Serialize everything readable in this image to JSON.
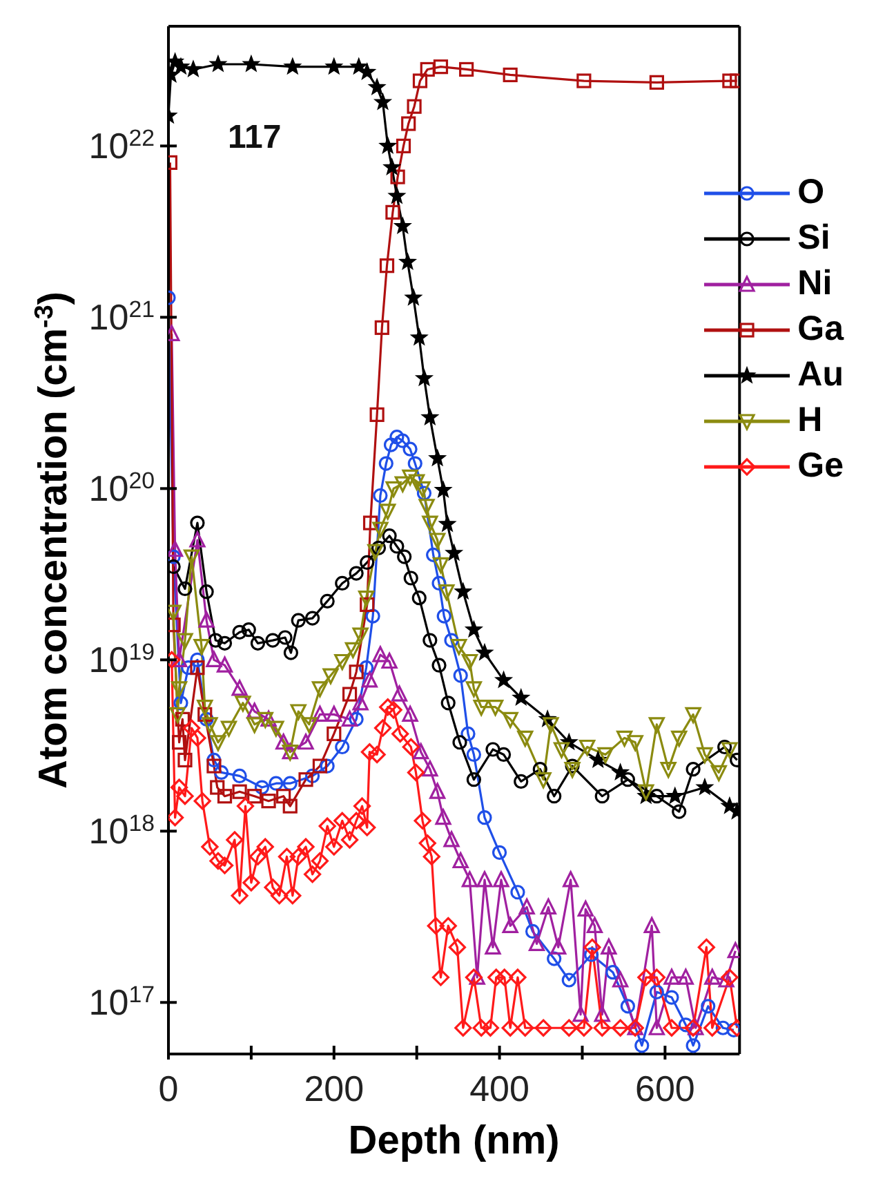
{
  "chart_data": {
    "type": "line",
    "xlabel": "Depth (nm)",
    "ylabel": "Atom concentration (cm$^{-3}$)",
    "annotations": [
      "117"
    ],
    "log": "y",
    "legend": "top right",
    "xlim": [
      0,
      690
    ],
    "xticks": [
      0,
      {
        "value": 100,
        "label": null
      },
      200,
      {
        "value": 300,
        "label": null
      },
      400,
      {
        "value": 500,
        "label": null
      },
      600
    ],
    "ylim": [
      5e+16,
      5e+22
    ],
    "yticks": [
      {
        "value": 1e+17,
        "label": "10$^{17}$"
      },
      {
        "value": 1e+18,
        "label": "10$^{18}$"
      },
      {
        "value": 1e+19,
        "label": "10$^{19}$"
      },
      {
        "value": 1e+20,
        "label": "10$^{20}$"
      },
      {
        "value": 1e+21,
        "label": "10$^{21}$"
      },
      {
        "value": 1e+22,
        "label": "10$^{22}$"
      }
    ],
    "series": [
      {
        "name": "O",
        "color": "#1f4fe8",
        "marker": "circle",
        "x": [
          0,
          6,
          15,
          24,
          35,
          46,
          55,
          64,
          86,
          113,
          130,
          147,
          174,
          192,
          210,
          227,
          239,
          247,
          256,
          263,
          269,
          276,
          283,
          292,
          298,
          309,
          320,
          327,
          333,
          342,
          353,
          362,
          369,
          382,
          400,
          422,
          440,
          466,
          484,
          511,
          537,
          555,
          572,
          590,
          608,
          625,
          634,
          652,
          670,
          683
        ],
        "values": [
          1.3e+21,
          4e+19,
          5.6e+18,
          9e+18,
          1e+19,
          4.5e+18,
          2.6e+18,
          2.2e+18,
          2.1e+18,
          1.8e+18,
          1.9e+18,
          1.9e+18,
          2.1e+18,
          2.4e+18,
          3.1e+18,
          4.5e+18,
          9e+18,
          1.8e+19,
          9.1e+19,
          1.4e+20,
          1.8e+20,
          2e+20,
          1.9e+20,
          1.7e+20,
          1.4e+20,
          9.4e+19,
          4.1e+19,
          2.8e+19,
          1.8e+19,
          1.3e+19,
          8.1e+18,
          3.7e+18,
          2.8e+18,
          1.2e+18,
          7.5e+17,
          4.4e+17,
          2.6e+17,
          1.8e+17,
          1.35e+17,
          1.9e+17,
          1.5e+17,
          9.5e+16,
          5.6e+16,
          1.15e+17,
          1.07e+17,
          7.4e+16,
          5.6e+16,
          9.5e+16,
          7.1e+16,
          6.9e+16
        ]
      },
      {
        "name": "Si",
        "color": "#000000",
        "marker": "circle",
        "x": [
          6,
          20,
          35,
          46,
          57,
          68,
          86,
          97,
          108,
          126,
          141,
          148,
          157,
          174,
          192,
          210,
          227,
          240,
          254,
          267,
          276,
          285,
          293,
          303,
          316,
          327,
          338,
          352,
          369,
          392,
          405,
          426,
          449,
          466,
          488,
          524,
          555,
          590,
          617,
          634,
          672,
          687
        ],
        "values": [
          3.5e+19,
          2.6e+19,
          6.3e+19,
          2.5e+19,
          1.3e+19,
          1.25e+19,
          1.45e+19,
          1.5e+19,
          1.25e+19,
          1.3e+19,
          1.35e+19,
          1.1e+19,
          1.7e+19,
          1.75e+19,
          2.2e+19,
          2.8e+19,
          3.2e+19,
          3.7e+19,
          4.5e+19,
          5.3e+19,
          4.6e+19,
          4e+19,
          3e+19,
          2.3e+19,
          1.3e+19,
          9.3e+18,
          5.6e+18,
          3.3e+18,
          2e+18,
          3e+18,
          2.8e+18,
          1.95e+18,
          2.3e+18,
          1.6e+18,
          2.4e+18,
          1.6e+18,
          2e+18,
          1.6e+18,
          1.3e+18,
          2.3e+18,
          3.1e+18,
          2.6e+18
        ]
      },
      {
        "name": "Ni",
        "color": "#a020a0",
        "marker": "triangle",
        "x": [
          4,
          8,
          13,
          35,
          46,
          55,
          68,
          86,
          104,
          121,
          139,
          147,
          166,
          183,
          200,
          219,
          232,
          243,
          256,
          267,
          279,
          292,
          305,
          316,
          325,
          332,
          342,
          353,
          364,
          373,
          382,
          392,
          402,
          413,
          433,
          445,
          459,
          471,
          486,
          498,
          504,
          515,
          524,
          532,
          546,
          564,
          584,
          590,
          608,
          625,
          637,
          657,
          674,
          685
        ],
        "values": [
          8e+20,
          4.4e+19,
          1e+19,
          5e+19,
          1.7e+19,
          1e+19,
          9.3e+18,
          6.8e+18,
          5e+18,
          4.5e+18,
          3.3e+18,
          2.9e+18,
          3.3e+18,
          4.8e+18,
          4.8e+18,
          4.5e+18,
          5.6e+18,
          7.6e+18,
          1.07e+19,
          9.8e+18,
          6.3e+18,
          4.8e+18,
          2.9e+18,
          2.3e+18,
          1.7e+18,
          1.2e+18,
          8.9e+17,
          6.7e+17,
          5.2e+17,
          1.4e+17,
          5.2e+17,
          2.1e+17,
          5.2e+17,
          2.8e+17,
          3.6e+17,
          2.2e+17,
          3.6e+17,
          2.1e+17,
          5.2e+17,
          8.5e+16,
          3.5e+17,
          2.8e+17,
          8.5e+16,
          2.1e+17,
          1.35e+17,
          7.1e+16,
          2.8e+17,
          7.1e+16,
          1.4e+17,
          1.4e+17,
          7.1e+16,
          1.4e+17,
          1.35e+17,
          2e+17
        ]
      },
      {
        "name": "Ga",
        "color": "#b01010",
        "marker": "square",
        "x": [
          2,
          6,
          13,
          17,
          20,
          35,
          44,
          55,
          59,
          68,
          86,
          104,
          121,
          139,
          147,
          166,
          183,
          200,
          219,
          227,
          240,
          244,
          252,
          258,
          264,
          271,
          277,
          284,
          290,
          297,
          304,
          313,
          329,
          360,
          413,
          502,
          590,
          678,
          687
        ],
        "values": [
          8e+21,
          1.6e+19,
          3.3e+18,
          4.5e+18,
          2.6e+18,
          9e+18,
          4.8e+18,
          2.4e+18,
          1.8e+18,
          1.6e+18,
          1.7e+18,
          1.6e+18,
          1.5e+18,
          1.6e+18,
          1.4e+18,
          2e+18,
          2.4e+18,
          3.7e+18,
          6.3e+18,
          8.5e+18,
          2.1e+19,
          6.3e+19,
          2.7e+20,
          8.7e+20,
          2e+21,
          4.1e+21,
          6.6e+21,
          1e+22,
          1.35e+22,
          1.7e+22,
          2.4e+22,
          2.8e+22,
          2.9e+22,
          2.8e+22,
          2.6e+22,
          2.4e+22,
          2.35e+22,
          2.4e+22,
          2.4e+22
        ]
      },
      {
        "name": "Au",
        "color": "#000000",
        "marker": "star",
        "x": [
          0,
          3,
          8,
          15,
          30,
          60,
          100,
          150,
          200,
          230,
          240,
          252,
          259,
          265,
          270,
          276,
          283,
          289,
          296,
          303,
          309,
          316,
          325,
          332,
          337,
          345,
          356,
          369,
          382,
          405,
          426,
          458,
          484,
          519,
          546,
          577,
          612,
          648,
          678,
          687
        ],
        "values": [
          1.5e+22,
          2.6e+22,
          3.1e+22,
          2.9e+22,
          2.8e+22,
          3e+22,
          3e+22,
          2.9e+22,
          2.9e+22,
          2.9e+22,
          2.7e+22,
          2.2e+22,
          1.8e+22,
          1e+22,
          7.5e+21,
          5.1e+21,
          3.4e+21,
          2.1e+21,
          1.3e+21,
          7.6e+20,
          4.4e+20,
          2.6e+20,
          1.5e+20,
          9.8e+19,
          6.2e+19,
          4.2e+19,
          2.5e+19,
          1.5e+19,
          1.1e+19,
          7.6e+18,
          6e+18,
          4.5e+18,
          3.3e+18,
          2.6e+18,
          2.2e+18,
          1.6e+18,
          1.6e+18,
          1.8e+18,
          1.4e+18,
          1.3e+18
        ]
      },
      {
        "name": "H",
        "color": "#8b8b10",
        "marker": "triangle-down",
        "x": [
          6,
          11,
          13,
          20,
          28,
          40,
          44,
          50,
          60,
          73,
          90,
          104,
          117,
          130,
          147,
          157,
          170,
          183,
          196,
          210,
          223,
          232,
          239,
          250,
          256,
          265,
          272,
          283,
          292,
          300,
          307,
          312,
          316,
          325,
          329,
          336,
          351,
          364,
          369,
          378,
          395,
          413,
          431,
          453,
          462,
          475,
          488,
          506,
          528,
          551,
          564,
          577,
          590,
          604,
          617,
          634,
          648,
          665,
          678
        ],
        "values": [
          1.9e+19,
          4.8e+18,
          6.8e+18,
          1.3e+19,
          4e+19,
          1.2e+19,
          5.3e+18,
          4.2e+18,
          3.3e+18,
          4e+18,
          5.6e+18,
          4.2e+18,
          4.5e+18,
          4e+18,
          2.9e+18,
          5e+18,
          4.2e+18,
          6.8e+18,
          8.1e+18,
          9.8e+18,
          1.15e+19,
          1.4e+19,
          2.3e+19,
          4.3e+19,
          5.8e+19,
          7.4e+19,
          1e+20,
          1.07e+20,
          1.17e+20,
          1.1e+20,
          1e+20,
          7.9e+19,
          6.3e+19,
          5e+19,
          3.6e+19,
          2.5e+19,
          1.2e+19,
          9.8e+18,
          6.8e+18,
          5.3e+18,
          5.3e+18,
          4.5e+18,
          3.5e+18,
          2e+18,
          4.2e+18,
          3e+18,
          2.3e+18,
          3.1e+18,
          2.8e+18,
          3.5e+18,
          3.3e+18,
          1.7e+18,
          4.2e+18,
          2.3e+18,
          3.5e+18,
          4.8e+18,
          2.8e+18,
          2.2e+18,
          3e+18
        ]
      },
      {
        "name": "Ge",
        "color": "#ff1a1a",
        "marker": "diamond",
        "x": [
          4,
          8,
          13,
          20,
          28,
          35,
          41,
          50,
          60,
          68,
          80,
          86,
          93,
          100,
          108,
          117,
          126,
          134,
          143,
          150,
          157,
          166,
          174,
          183,
          192,
          200,
          210,
          219,
          227,
          234,
          240,
          243,
          252,
          259,
          265,
          272,
          280,
          293,
          299,
          307,
          313,
          318,
          323,
          329,
          338,
          349,
          356,
          369,
          378,
          389,
          396,
          406,
          413,
          422,
          431,
          453,
          484,
          502,
          512,
          524,
          546,
          564,
          577,
          590,
          608,
          634,
          650,
          657,
          678,
          687
        ],
        "values": [
          1e+19,
          1.2e+18,
          1.8e+18,
          1.6e+18,
          4e+18,
          3.5e+18,
          1.5e+18,
          8.1e+17,
          6.7e+17,
          6.3e+17,
          8.9e+17,
          4.2e+17,
          1.4e+18,
          5e+17,
          7.1e+17,
          8.1e+17,
          4.7e+17,
          4.2e+17,
          7.1e+17,
          4.2e+17,
          7.1e+17,
          8.1e+17,
          5.6e+17,
          6.7e+17,
          1.07e+18,
          8.1e+17,
          1.15e+18,
          8.9e+17,
          1.15e+18,
          1.4e+18,
          1.05e+18,
          2.9e+18,
          2.8e+18,
          4e+18,
          5.3e+18,
          5.1e+18,
          3.7e+18,
          3.1e+18,
          2.2e+18,
          1.15e+18,
          8.5e+17,
          7.1e+17,
          2.8e+17,
          1.4e+17,
          2.8e+17,
          2.1e+17,
          7.1e+16,
          1.4e+17,
          7.1e+16,
          7.1e+16,
          1.4e+17,
          1.4e+17,
          7.1e+16,
          1.4e+17,
          7.1e+16,
          7.1e+16,
          7.1e+16,
          7.1e+16,
          2.1e+17,
          7.1e+16,
          7.1e+16,
          7.1e+16,
          1.4e+17,
          1.4e+17,
          7.1e+16,
          7.1e+16,
          2.1e+17,
          7.1e+16,
          1.4e+17,
          7.1e+16
        ]
      }
    ]
  }
}
